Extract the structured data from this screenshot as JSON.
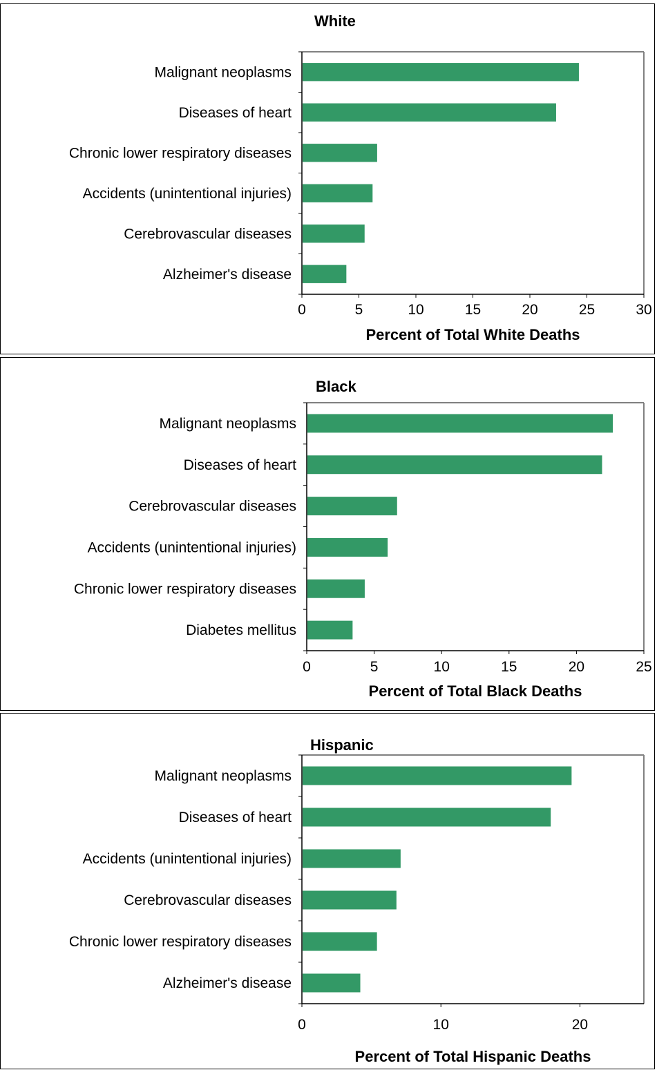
{
  "style": {
    "bar_color": "#339966",
    "plot_border_color": "#808080",
    "axis_color": "#000000"
  },
  "chart_data": [
    {
      "type": "bar",
      "orientation": "horizontal",
      "title": "White",
      "xlabel": "Percent of Total White Deaths",
      "xlim": [
        0,
        30
      ],
      "xticks": [
        0,
        5,
        10,
        15,
        20,
        25,
        30
      ],
      "categories": [
        "Malignant neoplasms",
        "Diseases of heart",
        "Chronic lower respiratory diseases",
        "Accidents (unintentional injuries)",
        "Cerebrovascular diseases",
        "Alzheimer's disease"
      ],
      "values": [
        24.3,
        22.3,
        6.6,
        6.2,
        5.5,
        3.9
      ],
      "grid": false
    },
    {
      "type": "bar",
      "orientation": "horizontal",
      "title": "Black",
      "xlabel": "Percent of Total Black Deaths",
      "xlim": [
        0,
        25
      ],
      "xticks": [
        0,
        5,
        10,
        15,
        20,
        25
      ],
      "categories": [
        "Malignant neoplasms",
        "Diseases of heart",
        "Cerebrovascular diseases",
        "Accidents (unintentional injuries)",
        "Chronic lower respiratory diseases",
        "Diabetes mellitus"
      ],
      "values": [
        22.7,
        21.9,
        6.7,
        6.0,
        4.3,
        3.4
      ],
      "grid": false
    },
    {
      "type": "bar",
      "orientation": "horizontal",
      "title": "Hispanic",
      "xlabel": "Percent of Total Hispanic Deaths",
      "xlim": [
        0,
        24.6
      ],
      "xticks": [
        0,
        10,
        20
      ],
      "categories": [
        "Malignant neoplasms",
        "Diseases of heart",
        "Accidents (unintentional injuries)",
        "Cerebrovascular diseases",
        "Chronic lower respiratory diseases",
        "Alzheimer's disease"
      ],
      "values": [
        19.4,
        17.9,
        7.1,
        6.8,
        5.4,
        4.2
      ],
      "grid": false
    }
  ]
}
